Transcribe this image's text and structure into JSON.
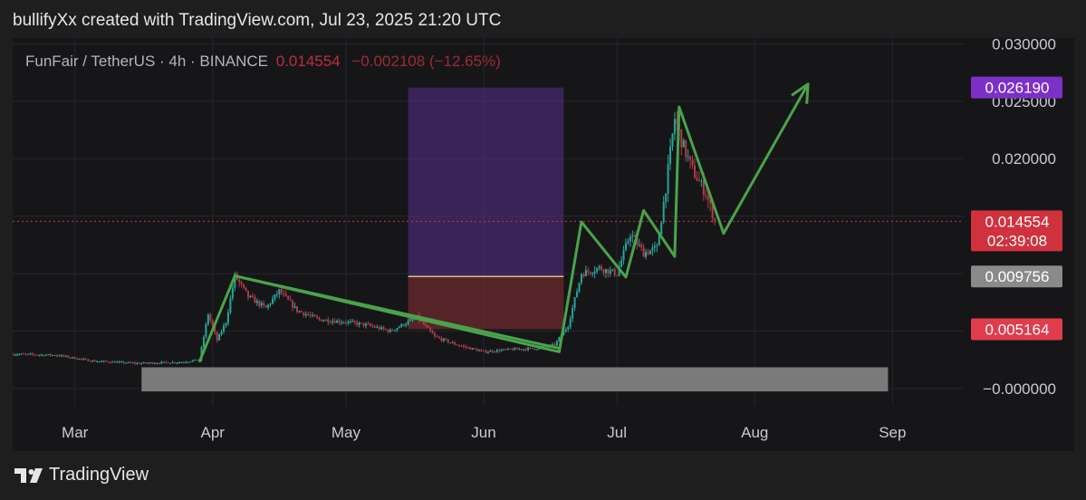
{
  "caption": "bullifyXx created with TradingView.com, Jul 23, 2025 21:20 UTC",
  "legend": {
    "symbol": "FunFair / TetherUS · 4h · BINANCE",
    "price": "0.014554",
    "change": "−0.002108 (−12.65%)"
  },
  "footer": {
    "brand": "TradingView",
    "logo": "tradingview-logo-icon"
  },
  "colors": {
    "background": "#161619",
    "grid": "#24262c",
    "candle_up": "#26a69a",
    "candle_down": "#b23a43",
    "drawing": "#4aa34a",
    "zone_box": "#8c8c8c",
    "target_box": "#5a2f8a",
    "stop_box": "#6b2a2e",
    "tag_target": "#7d30c8",
    "tag_current": "#d0323d",
    "tag_entry": "#8a8a8a",
    "tag_stop": "#e03c4c"
  },
  "chart_data": {
    "type": "candlestick",
    "symbol": "FunFair / TetherUS",
    "interval": "4h",
    "exchange": "BINANCE",
    "x_range": [
      "2025-02-15",
      "2025-09-15"
    ],
    "ylim": [
      -0.0015,
      0.0305
    ],
    "y_ticks": [
      "0.030000",
      "0.025000",
      "0.020000",
      "−0.000000"
    ],
    "x_ticks": [
      {
        "label": "Mar",
        "date": "2025-03-01"
      },
      {
        "label": "Apr",
        "date": "2025-04-01"
      },
      {
        "label": "May",
        "date": "2025-05-01"
      },
      {
        "label": "Jun",
        "date": "2025-06-01"
      },
      {
        "label": "Jul",
        "date": "2025-07-01"
      },
      {
        "label": "Aug",
        "date": "2025-08-01"
      },
      {
        "label": "Sep",
        "date": "2025-09-01"
      }
    ],
    "price_path": [
      [
        "2025-02-15",
        0.003
      ],
      [
        "2025-02-25",
        0.0029
      ],
      [
        "2025-03-05",
        0.0024
      ],
      [
        "2025-03-15",
        0.0022
      ],
      [
        "2025-03-25",
        0.0023
      ],
      [
        "2025-03-29",
        0.0025
      ],
      [
        "2025-03-31",
        0.0065
      ],
      [
        "2025-04-02",
        0.0042
      ],
      [
        "2025-04-04",
        0.0058
      ],
      [
        "2025-04-06",
        0.0098
      ],
      [
        "2025-04-09",
        0.008
      ],
      [
        "2025-04-13",
        0.007
      ],
      [
        "2025-04-16",
        0.0085
      ],
      [
        "2025-04-20",
        0.0068
      ],
      [
        "2025-04-25",
        0.006
      ],
      [
        "2025-05-01",
        0.0058
      ],
      [
        "2025-05-06",
        0.0055
      ],
      [
        "2025-05-11",
        0.005
      ],
      [
        "2025-05-17",
        0.0062
      ],
      [
        "2025-05-21",
        0.0045
      ],
      [
        "2025-05-26",
        0.0038
      ],
      [
        "2025-06-01",
        0.0032
      ],
      [
        "2025-06-07",
        0.0034
      ],
      [
        "2025-06-13",
        0.0035
      ],
      [
        "2025-06-17",
        0.0038
      ],
      [
        "2025-06-20",
        0.0055
      ],
      [
        "2025-06-23",
        0.01
      ],
      [
        "2025-06-27",
        0.0105
      ],
      [
        "2025-07-01",
        0.01
      ],
      [
        "2025-07-04",
        0.0135
      ],
      [
        "2025-07-07",
        0.0118
      ],
      [
        "2025-07-10",
        0.0122
      ],
      [
        "2025-07-12",
        0.0175
      ],
      [
        "2025-07-14",
        0.0235
      ],
      [
        "2025-07-16",
        0.021
      ],
      [
        "2025-07-18",
        0.019
      ],
      [
        "2025-07-21",
        0.017
      ],
      [
        "2025-07-23",
        0.0146
      ]
    ],
    "annotations": {
      "tags": [
        {
          "label": "0.026190",
          "value": 0.02619,
          "role": "target"
        },
        {
          "label": "0.014554\n02:39:08",
          "value": 0.014554,
          "role": "current"
        },
        {
          "label": "0.009756",
          "value": 0.009756,
          "role": "entry"
        },
        {
          "label": "0.005164",
          "value": 0.005164,
          "role": "stop"
        }
      ],
      "current_price_line": 0.014554,
      "support_zone": {
        "x": [
          "2025-03-16",
          "2025-08-31"
        ],
        "y": [
          -0.00025,
          0.00185
        ]
      },
      "position_box": {
        "x": [
          "2025-05-15",
          "2025-06-19"
        ],
        "target": 0.02619,
        "entry": 0.009756,
        "stop": 0.005164
      },
      "trendline": [
        [
          "2025-04-06",
          0.0098
        ],
        [
          "2025-06-18",
          0.0035
        ]
      ],
      "projection_path": [
        [
          "2025-03-29",
          0.0023
        ],
        [
          "2025-04-06",
          0.0098
        ],
        [
          "2025-06-18",
          0.0032
        ],
        [
          "2025-06-23",
          0.0145
        ],
        [
          "2025-07-03",
          0.0097
        ],
        [
          "2025-07-07",
          0.0155
        ],
        [
          "2025-07-14",
          0.0115
        ],
        [
          "2025-07-15",
          0.0245
        ],
        [
          "2025-07-25",
          0.0135
        ],
        [
          "2025-08-13",
          0.0265
        ]
      ]
    }
  }
}
